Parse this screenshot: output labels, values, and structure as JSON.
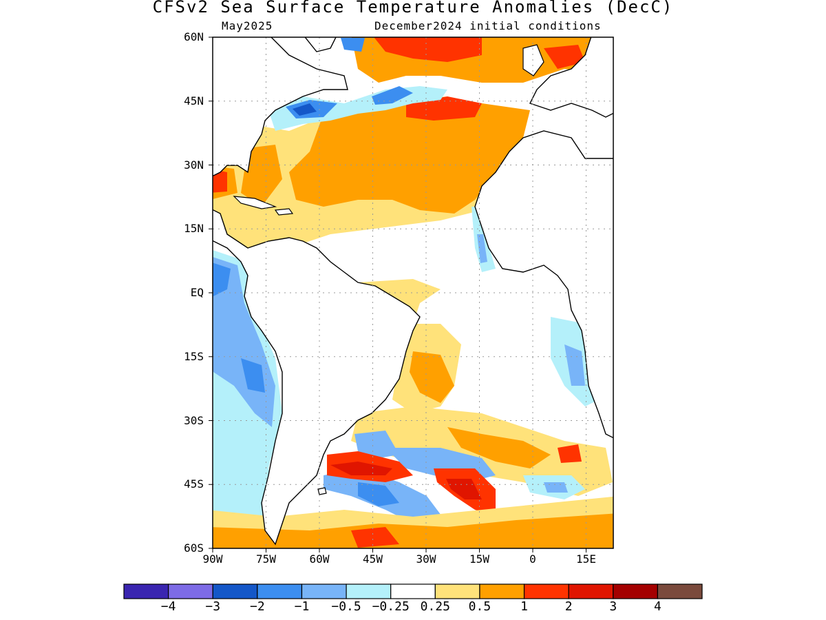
{
  "title": "CFSv2 Sea Surface Temperature Anomalies (DecC)",
  "subtitle_left": "May2025",
  "subtitle_right": "December2024 initial conditions",
  "lat_labels": [
    "60N",
    "45N",
    "30N",
    "15N",
    "EQ",
    "15S",
    "30S",
    "45S",
    "60S"
  ],
  "lon_labels": [
    "90W",
    "75W",
    "60W",
    "45W",
    "30W",
    "15W",
    "0",
    "15E"
  ],
  "colorbar": {
    "labels": [
      "−4",
      "−3",
      "−2",
      "−1",
      "−0.5",
      "−0.25",
      "0.25",
      "0.5",
      "1",
      "2",
      "3",
      "4"
    ],
    "colors": [
      "#3a25b0",
      "#7d6be6",
      "#1457c8",
      "#3c8ef0",
      "#78b4f8",
      "#b4f0fa",
      "#ffffff",
      "#ffe27a",
      "#ffa000",
      "#ff3300",
      "#e01500",
      "#a40000",
      "#7a4a3c"
    ]
  },
  "map_colors": {
    "land": "#ffffff",
    "coast": "#000000",
    "grid": "#999999"
  }
}
